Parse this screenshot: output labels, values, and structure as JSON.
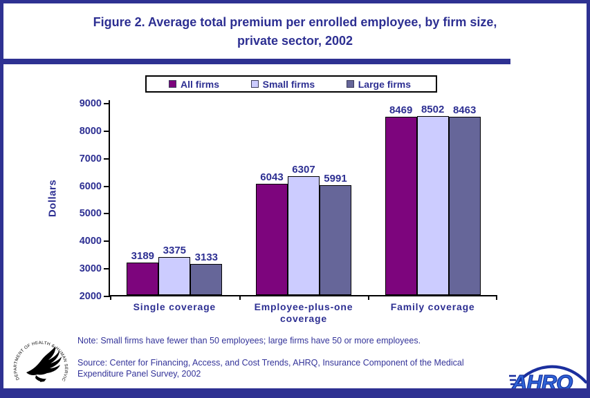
{
  "header": {
    "title_line1": "Figure 2. Average total premium per enrolled employee, by firm size,",
    "title_line2": "private sector, 2002"
  },
  "chart_data": {
    "type": "bar",
    "title": "Figure 2. Average total premium per enrolled employee, by firm size, private sector, 2002",
    "categories": [
      "Single coverage",
      "Employee-plus-one coverage",
      "Family coverage"
    ],
    "series": [
      {
        "name": "All firms",
        "color": "#7D057D",
        "values": [
          3189,
          6043,
          8469
        ]
      },
      {
        "name": "Small firms",
        "color": "#CCCCFF",
        "values": [
          3375,
          6307,
          8502
        ]
      },
      {
        "name": "Large firms",
        "color": "#666699",
        "values": [
          3133,
          5991,
          8463
        ]
      }
    ],
    "ylabel": "Dollars",
    "ylim": [
      2000,
      9000
    ],
    "ytick_step": 1000,
    "grid": false,
    "legend_position": "top",
    "value_labels_shown": true
  },
  "footer": {
    "note": "Note: Small firms have fewer than 50 employees; large firms have 50 or more employees.",
    "source": "Source: Center for Financing, Access, and Cost Trends, AHRQ, Insurance Component of the Medical Expenditure Panel Survey, 2002"
  },
  "logos": {
    "hhs_circle_text": "DEPARTMENT OF HEALTH & HUMAN SERVICES · USA",
    "ahrq_text": "AHRQ"
  },
  "colors": {
    "frame_navy": "#2E3192",
    "text_navy": "#2D2F92",
    "note_navy": "#333399",
    "axis_black": "#000000"
  }
}
